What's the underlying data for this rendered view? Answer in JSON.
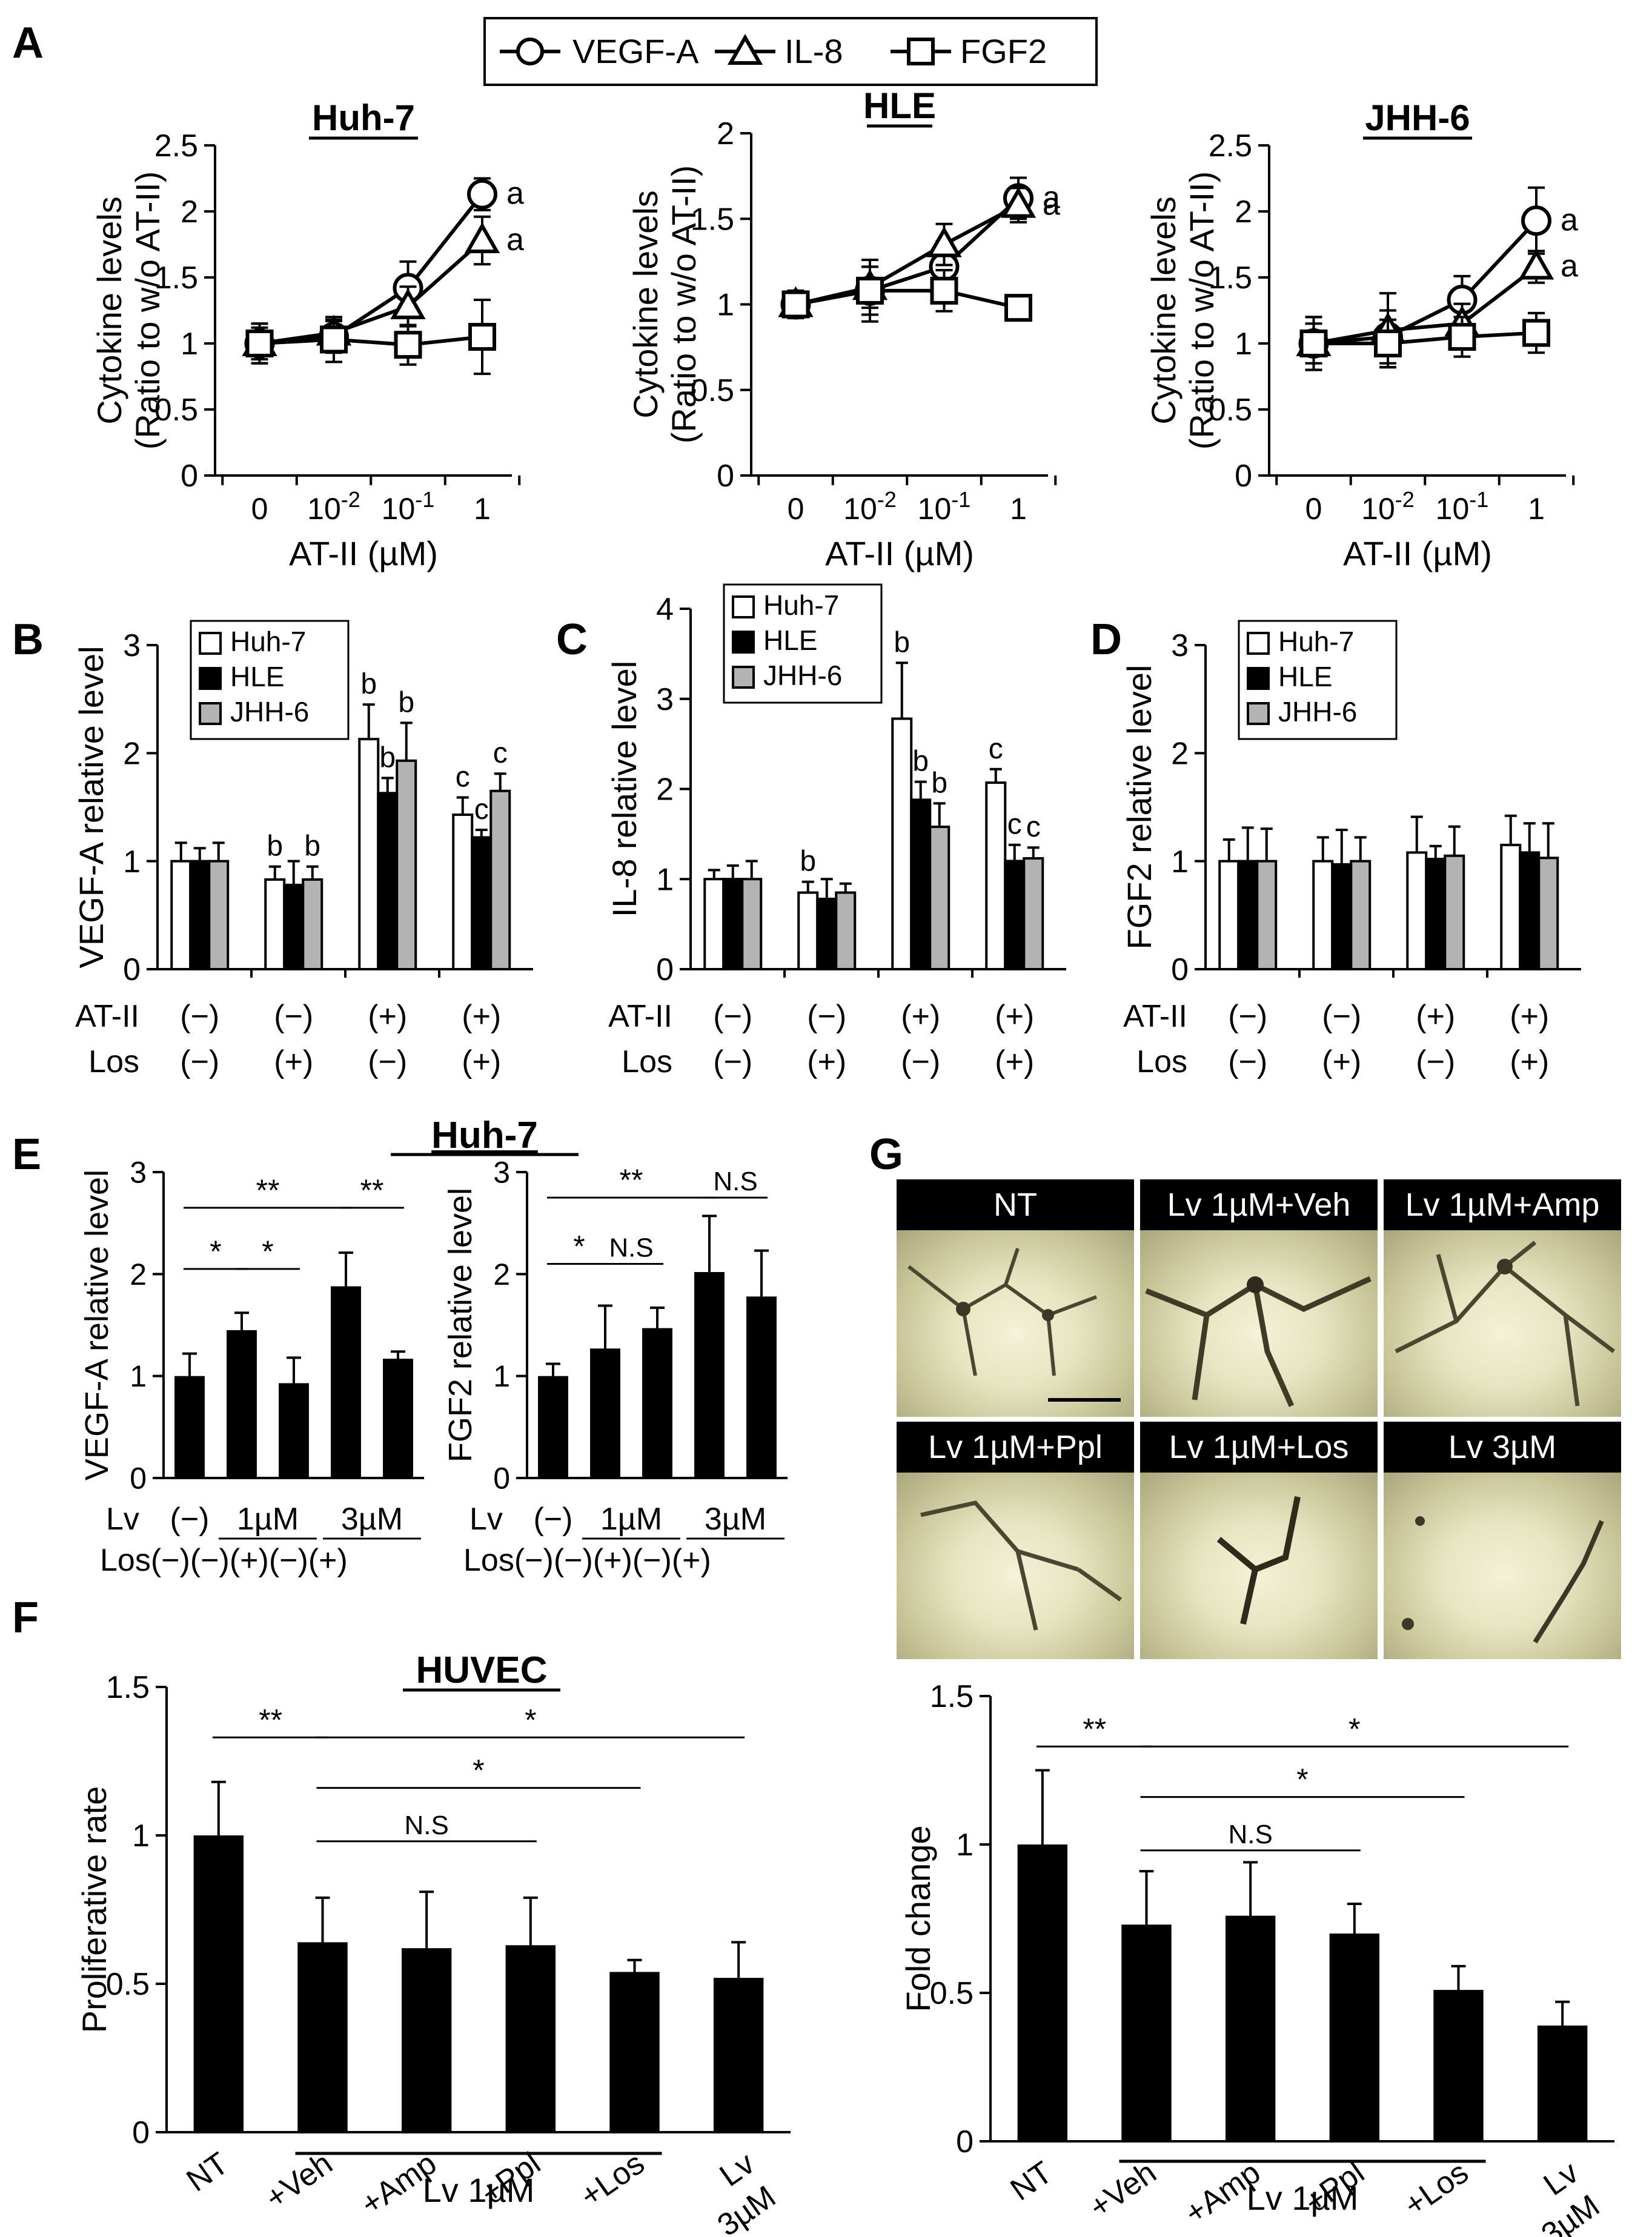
{
  "colors": {
    "white": "#ffffff",
    "black": "#000000",
    "gray": "#b3b3b3"
  },
  "panel_labels": {
    "A": "A",
    "B": "B",
    "C": "C",
    "D": "D",
    "E": "E",
    "F": "F",
    "G": "G"
  },
  "legend_A": {
    "items": [
      "VEGF-A",
      "IL-8",
      "FGF2"
    ]
  },
  "legend_BCD": {
    "items": [
      "Huh-7",
      "HLE",
      "JHH-6"
    ]
  },
  "E_title": "Huh-7",
  "F_title": "HUVEC",
  "axis_label_atii": "AT-II (µM)",
  "cond_row_labels": {
    "atii": "AT-II",
    "los": "Los"
  },
  "cond_atii": [
    "(−)",
    "(−)",
    "(+)",
    "(+)"
  ],
  "cond_los": [
    "(−)",
    "(+)",
    "(−)",
    "(+)"
  ],
  "E_row_labels": {
    "lv": "Lv",
    "los": "Los"
  },
  "E_lv_groups": [
    "(−)",
    "1µM",
    "3µM"
  ],
  "E_los_text": "(−)(−)(+)(−)(+)",
  "F_bracket_label": "Lv 1µM",
  "G_micro_titles": [
    "NT",
    "Lv 1µM+Veh",
    "Lv 1µM+Amp",
    "Lv 1µM+Ppl",
    "Lv 1µM+Los",
    "Lv 3µM"
  ],
  "chart_data": [
    {
      "id": "A1",
      "type": "line",
      "title": "Huh-7",
      "xlabel": "AT-II (µM)",
      "ylabel": "Cytokine levels (Ratio to w/o AT-II)",
      "ylim": [
        0,
        2.5
      ],
      "yticks": [
        "0",
        "0.5",
        "1",
        "1.5",
        "2",
        "2.5"
      ],
      "x_ticks": [
        "0",
        "10-2",
        "10-1",
        "1"
      ],
      "series": [
        {
          "name": "VEGF-A",
          "marker": "circle",
          "values": [
            1.0,
            1.05,
            1.42,
            2.13
          ],
          "errors": [
            0.15,
            0.12,
            0.2,
            0.12
          ],
          "sig": "a"
        },
        {
          "name": "IL-8",
          "marker": "triangle",
          "values": [
            1.0,
            1.08,
            1.28,
            1.78
          ],
          "errors": [
            0.12,
            0.1,
            0.15,
            0.18
          ],
          "sig": "a"
        },
        {
          "name": "FGF2",
          "marker": "square",
          "values": [
            1.0,
            1.03,
            0.99,
            1.05
          ],
          "errors": [
            0.15,
            0.17,
            0.15,
            0.28
          ],
          "sig": ""
        }
      ]
    },
    {
      "id": "A2",
      "type": "line",
      "title": "HLE",
      "xlabel": "AT-II (µM)",
      "ylabel": "Cytokine levels (Ratio to w/o AT-II)",
      "ylim": [
        0,
        2
      ],
      "yticks": [
        "0",
        "0.5",
        "1",
        "1.5",
        "2"
      ],
      "x_ticks": [
        "0",
        "10-2",
        "10-1",
        "1"
      ],
      "series": [
        {
          "name": "VEGF-A",
          "marker": "circle",
          "values": [
            1.0,
            1.08,
            1.22,
            1.62
          ],
          "errors": [
            0.08,
            0.18,
            0.15,
            0.12
          ],
          "sig": "a"
        },
        {
          "name": "IL-8",
          "marker": "triangle",
          "values": [
            1.0,
            1.1,
            1.35,
            1.58
          ],
          "errors": [
            0.06,
            0.12,
            0.12,
            0.1
          ],
          "sig": "a"
        },
        {
          "name": "FGF2",
          "marker": "square",
          "values": [
            1.0,
            1.08,
            1.08,
            0.98
          ],
          "errors": [
            0.06,
            0.14,
            0.12,
            0.04
          ],
          "sig": ""
        }
      ]
    },
    {
      "id": "A3",
      "type": "line",
      "title": "JHH-6",
      "xlabel": "AT-II (µM)",
      "ylabel": "Cytokine levels (Ratio to w/o AT-II)",
      "ylim": [
        0,
        2.5
      ],
      "yticks": [
        "0",
        "0.5",
        "1",
        "1.5",
        "2",
        "2.5"
      ],
      "x_ticks": [
        "0",
        "10-2",
        "10-1",
        "1"
      ],
      "series": [
        {
          "name": "VEGF-A",
          "marker": "circle",
          "values": [
            1.0,
            1.05,
            1.33,
            1.93
          ],
          "errors": [
            0.2,
            0.2,
            0.18,
            0.25
          ],
          "sig": "a"
        },
        {
          "name": "IL-8",
          "marker": "triangle",
          "values": [
            1.0,
            1.1,
            1.15,
            1.58
          ],
          "errors": [
            0.15,
            0.28,
            0.15,
            0.12
          ],
          "sig": "a"
        },
        {
          "name": "FGF2",
          "marker": "square",
          "values": [
            1.0,
            1.0,
            1.05,
            1.08
          ],
          "errors": [
            0.2,
            0.18,
            0.15,
            0.15
          ],
          "sig": ""
        }
      ]
    },
    {
      "id": "B",
      "type": "bar",
      "ylabel": "VEGF-A relative level",
      "ylim": [
        0,
        3
      ],
      "yticks": [
        "0",
        "1",
        "2",
        "3"
      ],
      "groups": 4,
      "series": [
        {
          "name": "Huh-7",
          "values": [
            1.0,
            0.83,
            2.13,
            1.43
          ],
          "errors": [
            0.17,
            0.12,
            0.32,
            0.16
          ],
          "sig": [
            "",
            "b",
            "b",
            "c"
          ]
        },
        {
          "name": "HLE",
          "values": [
            1.0,
            0.78,
            1.63,
            1.22
          ],
          "errors": [
            0.12,
            0.22,
            0.14,
            0.07
          ],
          "sig": [
            "",
            "",
            "b",
            "c"
          ]
        },
        {
          "name": "JHH-6",
          "values": [
            1.0,
            0.83,
            1.93,
            1.65
          ],
          "errors": [
            0.17,
            0.12,
            0.35,
            0.16
          ],
          "sig": [
            "",
            "b",
            "b",
            "c"
          ]
        }
      ]
    },
    {
      "id": "C",
      "type": "bar",
      "ylabel": "IL-8 relative level",
      "ylim": [
        0,
        4
      ],
      "yticks": [
        "0",
        "1",
        "2",
        "3",
        "4"
      ],
      "groups": 4,
      "series": [
        {
          "name": "Huh-7",
          "values": [
            1.0,
            0.85,
            2.78,
            2.07
          ],
          "errors": [
            0.1,
            0.12,
            0.62,
            0.15
          ],
          "sig": [
            "",
            "b",
            "b",
            "c"
          ]
        },
        {
          "name": "HLE",
          "values": [
            1.0,
            0.78,
            1.88,
            1.2
          ],
          "errors": [
            0.15,
            0.22,
            0.2,
            0.18
          ],
          "sig": [
            "",
            "",
            "b",
            "c"
          ]
        },
        {
          "name": "JHH-6",
          "values": [
            1.0,
            0.85,
            1.58,
            1.23
          ],
          "errors": [
            0.2,
            0.1,
            0.26,
            0.12
          ],
          "sig": [
            "",
            "",
            "b",
            "c"
          ]
        }
      ]
    },
    {
      "id": "D",
      "type": "bar",
      "ylabel": "FGF2 relative level",
      "ylim": [
        0,
        3
      ],
      "yticks": [
        "0",
        "1",
        "2",
        "3"
      ],
      "groups": 4,
      "series": [
        {
          "name": "Huh-7",
          "values": [
            1.0,
            1.0,
            1.08,
            1.15
          ],
          "errors": [
            0.2,
            0.22,
            0.33,
            0.27
          ],
          "sig": [
            "",
            "",
            "",
            ""
          ]
        },
        {
          "name": "HLE",
          "values": [
            1.0,
            0.97,
            1.02,
            1.08
          ],
          "errors": [
            0.31,
            0.32,
            0.12,
            0.27
          ],
          "sig": [
            "",
            "",
            "",
            ""
          ]
        },
        {
          "name": "JHH-6",
          "values": [
            1.0,
            1.0,
            1.05,
            1.03
          ],
          "errors": [
            0.3,
            0.22,
            0.27,
            0.32
          ],
          "sig": [
            "",
            "",
            "",
            ""
          ]
        }
      ]
    },
    {
      "id": "E1",
      "type": "bar",
      "ylabel": "VEGF-A relative level",
      "ylim": [
        0,
        3
      ],
      "yticks": [
        "0",
        "1",
        "2",
        "3"
      ],
      "values": [
        1.0,
        1.45,
        0.93,
        1.88,
        1.17
      ],
      "errors": [
        0.22,
        0.17,
        0.25,
        0.33,
        0.07
      ],
      "comparisons": [
        {
          "from": 0,
          "to": 1,
          "label": "*",
          "y": 2.05
        },
        {
          "from": 1,
          "to": 2,
          "label": "*",
          "y": 2.05
        },
        {
          "from": 0,
          "to": 3,
          "label": "**",
          "y": 2.65
        },
        {
          "from": 3,
          "to": 4,
          "label": "**",
          "y": 2.65
        }
      ]
    },
    {
      "id": "E2",
      "type": "bar",
      "ylabel": "FGF2 relative level",
      "ylim": [
        0,
        3
      ],
      "yticks": [
        "0",
        "1",
        "2",
        "3"
      ],
      "values": [
        1.0,
        1.27,
        1.47,
        2.02,
        1.78
      ],
      "errors": [
        0.12,
        0.42,
        0.2,
        0.55,
        0.45
      ],
      "comparisons": [
        {
          "from": 0,
          "to": 1,
          "label": "*",
          "y": 2.1
        },
        {
          "from": 1,
          "to": 2,
          "label": "N.S",
          "y": 2.1
        },
        {
          "from": 0,
          "to": 3,
          "label": "**",
          "y": 2.75
        },
        {
          "from": 3,
          "to": 4,
          "label": "N.S",
          "y": 2.75
        }
      ]
    },
    {
      "id": "F",
      "type": "bar",
      "ylabel": "Proliferative rate",
      "title": "HUVEC",
      "ylim": [
        0,
        1.5
      ],
      "yticks": [
        "0",
        "0.5",
        "1",
        "1.5"
      ],
      "categories": [
        "NT",
        "+Veh",
        "+Amp",
        "+Ppl",
        "+Los",
        "Lv 3µM"
      ],
      "values": [
        1.0,
        0.64,
        0.62,
        0.63,
        0.54,
        0.52
      ],
      "errors": [
        0.18,
        0.15,
        0.19,
        0.16,
        0.04,
        0.12
      ],
      "comparisons": [
        {
          "from": 0,
          "to": 1,
          "label": "**",
          "y": 1.33
        },
        {
          "from": 1,
          "to": 5,
          "label": "*",
          "y": 1.33
        },
        {
          "from": 1,
          "to": 4,
          "label": "*",
          "y": 1.16
        },
        {
          "from": 1,
          "to": 3,
          "label": "N.S",
          "y": 0.98
        }
      ]
    },
    {
      "id": "G",
      "type": "bar",
      "ylabel": "Fold change",
      "ylim": [
        0,
        1.5
      ],
      "yticks": [
        "0",
        "0.5",
        "1",
        "1.5"
      ],
      "categories": [
        "NT",
        "+Veh",
        "+Amp",
        "+Ppl",
        "+Los",
        "Lv 3µM"
      ],
      "values": [
        1.0,
        0.73,
        0.76,
        0.7,
        0.51,
        0.39
      ],
      "errors": [
        0.25,
        0.18,
        0.18,
        0.1,
        0.08,
        0.08
      ],
      "comparisons": [
        {
          "from": 0,
          "to": 1,
          "label": "**",
          "y": 1.33
        },
        {
          "from": 1,
          "to": 5,
          "label": "*",
          "y": 1.33
        },
        {
          "from": 1,
          "to": 4,
          "label": "*",
          "y": 1.16
        },
        {
          "from": 1,
          "to": 3,
          "label": "N.S",
          "y": 0.98
        }
      ]
    }
  ]
}
